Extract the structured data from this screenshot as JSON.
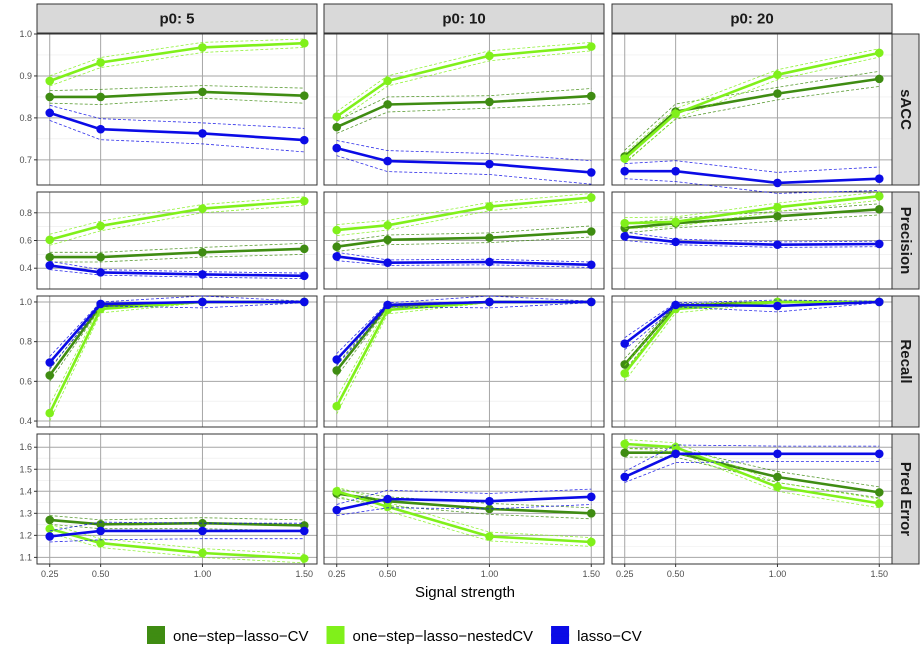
{
  "chart_data": {
    "type": "line",
    "title": "",
    "xlabel": "Signal strength",
    "x": [
      0.25,
      0.5,
      1.0,
      1.5
    ],
    "x_tick_labels": [
      "0.25",
      "0.50",
      "1.00",
      "1.50"
    ],
    "columns": [
      "p0:  5",
      "p0: 10",
      "p0: 20"
    ],
    "rows": [
      {
        "label": "sACC",
        "ylim": [
          0.64,
          1.0
        ],
        "ticks": [
          0.7,
          0.8,
          0.9,
          1.0
        ],
        "tick_labels": [
          "0.7",
          "0.8",
          "0.9",
          "1.0"
        ]
      },
      {
        "label": "Precision",
        "ylim": [
          0.25,
          0.95
        ],
        "ticks": [
          0.4,
          0.6,
          0.8
        ],
        "tick_labels": [
          "0.4",
          "0.6",
          "0.8"
        ]
      },
      {
        "label": "Recall",
        "ylim": [
          0.37,
          1.03
        ],
        "ticks": [
          0.4,
          0.6,
          0.8,
          1.0
        ],
        "tick_labels": [
          "0.4",
          "0.6",
          "0.8",
          "1.0"
        ]
      },
      {
        "label": "Pred Error",
        "ylim": [
          1.07,
          1.66
        ],
        "ticks": [
          1.1,
          1.2,
          1.3,
          1.4,
          1.5,
          1.6
        ],
        "tick_labels": [
          "1.1",
          "1.2",
          "1.3",
          "1.4",
          "1.5",
          "1.6"
        ]
      }
    ],
    "series": [
      {
        "name": "one−step−lasso−CV",
        "color": "#3f8c12",
        "values": {
          "sACC": [
            [
              0.85,
              0.85,
              0.862,
              0.853
            ],
            [
              0.778,
              0.832,
              0.838,
              0.852
            ],
            [
              0.708,
              0.815,
              0.858,
              0.893
            ]
          ],
          "Precision": [
            [
              0.48,
              0.48,
              0.515,
              0.54
            ],
            [
              0.555,
              0.605,
              0.62,
              0.665
            ],
            [
              0.69,
              0.725,
              0.775,
              0.825
            ]
          ],
          "Recall": [
            [
              0.63,
              0.98,
              1.0,
              1.0
            ],
            [
              0.655,
              0.98,
              1.0,
              1.0
            ],
            [
              0.685,
              0.98,
              1.0,
              1.0
            ]
          ],
          "Pred Error": [
            [
              1.27,
              1.25,
              1.255,
              1.245
            ],
            [
              1.39,
              1.355,
              1.32,
              1.3
            ],
            [
              1.575,
              1.575,
              1.465,
              1.395
            ]
          ]
        },
        "band": {
          "sACC": [
            0.015,
            0.018,
            0.015,
            0.018
          ],
          "Precision": [
            0.035,
            0.035,
            0.035,
            0.04
          ],
          "Recall": [
            0.03,
            0.01,
            0.004,
            0.004
          ],
          "Pred Error": [
            0.02,
            0.02,
            0.025,
            0.025
          ]
        }
      },
      {
        "name": "one−step−lasso−nestedCV",
        "color": "#80f01a",
        "values": {
          "sACC": [
            [
              0.888,
              0.932,
              0.968,
              0.978
            ],
            [
              0.803,
              0.888,
              0.948,
              0.97
            ],
            [
              0.703,
              0.81,
              0.903,
              0.955
            ]
          ],
          "Precision": [
            [
              0.605,
              0.705,
              0.83,
              0.885
            ],
            [
              0.675,
              0.71,
              0.845,
              0.91
            ],
            [
              0.725,
              0.735,
              0.84,
              0.92
            ]
          ],
          "Recall": [
            [
              0.44,
              0.965,
              1.0,
              1.0
            ],
            [
              0.475,
              0.96,
              1.0,
              1.0
            ],
            [
              0.64,
              0.965,
              1.0,
              1.0
            ]
          ],
          "Pred Error": [
            [
              1.23,
              1.165,
              1.12,
              1.095
            ],
            [
              1.4,
              1.33,
              1.195,
              1.17
            ],
            [
              1.615,
              1.6,
              1.42,
              1.345
            ]
          ]
        },
        "band": {
          "sACC": [
            0.012,
            0.012,
            0.012,
            0.01
          ],
          "Precision": [
            0.04,
            0.035,
            0.03,
            0.03
          ],
          "Recall": [
            0.04,
            0.02,
            0.004,
            0.004
          ],
          "Pred Error": [
            0.02,
            0.02,
            0.02,
            0.02
          ]
        }
      },
      {
        "name": "lasso−CV",
        "color": "#0b0be6",
        "values": {
          "sACC": [
            [
              0.812,
              0.773,
              0.763,
              0.747
            ],
            [
              0.728,
              0.697,
              0.69,
              0.67
            ],
            [
              0.673,
              0.673,
              0.645,
              0.655
            ]
          ],
          "Precision": [
            [
              0.42,
              0.37,
              0.355,
              0.345
            ],
            [
              0.485,
              0.44,
              0.445,
              0.425
            ],
            [
              0.63,
              0.59,
              0.57,
              0.575
            ]
          ],
          "Recall": [
            [
              0.695,
              0.99,
              1.0,
              1.0
            ],
            [
              0.71,
              0.985,
              1.0,
              1.0
            ],
            [
              0.79,
              0.985,
              0.98,
              1.0
            ]
          ],
          "Pred Error": [
            [
              1.195,
              1.22,
              1.22,
              1.22
            ],
            [
              1.315,
              1.365,
              1.355,
              1.375
            ],
            [
              1.465,
              1.57,
              1.57,
              1.57
            ]
          ]
        },
        "band": {
          "sACC": [
            0.018,
            0.025,
            0.025,
            0.028
          ],
          "Precision": [
            0.03,
            0.02,
            0.02,
            0.02
          ],
          "Recall": [
            0.03,
            0.01,
            0.03,
            0.004
          ],
          "Pred Error": [
            0.025,
            0.04,
            0.035,
            0.035
          ]
        }
      }
    ],
    "legend_position": "bottom",
    "grid": true
  }
}
